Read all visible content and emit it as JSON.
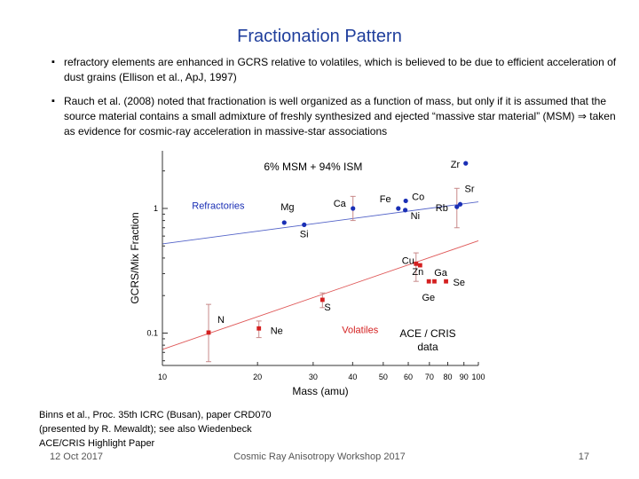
{
  "slide": {
    "title": "Fractionation Pattern",
    "bullets": [
      "refractory elements are enhanced in GCRS relative to volatiles, which is believed to be due to efficient acceleration of dust grains (Ellison et al., ApJ, 1997)",
      "Rauch et al. (2008) noted that fractionation is well organized as a function of mass, but only if it is assumed that the source material contains a small admixture of freshly synthesized and ejected “massive star material” (MSM) ⇒ taken as evidence for cosmic-ray acceleration in massive-star associations"
    ],
    "bullet_marker": "▪",
    "ace_label_line1": "ACE / CRIS",
    "ace_label_line2": "data",
    "citation_line1": "Binns et al., Proc. 35th ICRC (Busan), paper CRD070",
    "citation_line2": "(presented by R. Mewaldt); see also Wiedenbeck",
    "citation_line3": "ACE/CRIS Highlight Paper",
    "footer_date": "12 Oct 2017",
    "footer_event": "Cosmic Ray Anisotropy Workshop 2017",
    "footer_page": "17"
  },
  "chart_data": {
    "type": "scatter",
    "title": "6% MSM + 94% ISM",
    "xlabel": "Mass (amu)",
    "ylabel": "GCRS/Mix Fraction",
    "xscale": "log",
    "yscale": "log",
    "xlim": [
      10,
      100
    ],
    "ylim": [
      0.055,
      2.9
    ],
    "xticks": [
      10,
      20,
      30,
      40,
      50,
      60,
      70,
      80,
      90,
      100
    ],
    "yticks": [
      0.1,
      1
    ],
    "grid": false,
    "colors": {
      "refractories": "#1a2fb5",
      "volatiles": "#d42020",
      "errorbar": "#c88a8a"
    },
    "series": [
      {
        "name": "Refractories",
        "points": [
          {
            "label": "Mg",
            "x": 24.3,
            "y": 0.77
          },
          {
            "label": "Si",
            "x": 28.1,
            "y": 0.74
          },
          {
            "label": "Ca",
            "x": 40.1,
            "y": 1.0,
            "err": [
              0.8,
              1.25
            ]
          },
          {
            "label": "Fe",
            "x": 55.8,
            "y": 1.0
          },
          {
            "label": "Co",
            "x": 58.9,
            "y": 1.15
          },
          {
            "label": "Ni",
            "x": 58.7,
            "y": 0.97
          },
          {
            "label": "Rb",
            "x": 85.5,
            "y": 1.03,
            "err": [
              0.7,
              1.45
            ]
          },
          {
            "label": "Sr",
            "x": 87.6,
            "y": 1.08
          },
          {
            "label": "Zr",
            "x": 91.2,
            "y": 2.3
          }
        ],
        "fit": [
          [
            10,
            0.52
          ],
          [
            100,
            1.13
          ]
        ]
      },
      {
        "name": "Volatiles",
        "points": [
          {
            "label": "N",
            "x": 14.0,
            "y": 0.101,
            "err": [
              0.059,
              0.17
            ]
          },
          {
            "label": "Ne",
            "x": 20.2,
            "y": 0.109,
            "err": [
              0.092,
              0.125
            ]
          },
          {
            "label": "S",
            "x": 32.1,
            "y": 0.185,
            "err": [
              0.16,
              0.21
            ]
          },
          {
            "label": "Cu",
            "x": 63.5,
            "y": 0.36,
            "err": [
              0.26,
              0.44
            ]
          },
          {
            "label": "Zn",
            "x": 65.4,
            "y": 0.35
          },
          {
            "label": "Ga",
            "x": 69.7,
            "y": 0.26
          },
          {
            "label": "Ge",
            "x": 72.6,
            "y": 0.26
          },
          {
            "label": "Se",
            "x": 79.0,
            "y": 0.26
          }
        ],
        "fit": [
          [
            10,
            0.074
          ],
          [
            100,
            0.55
          ]
        ]
      }
    ]
  }
}
